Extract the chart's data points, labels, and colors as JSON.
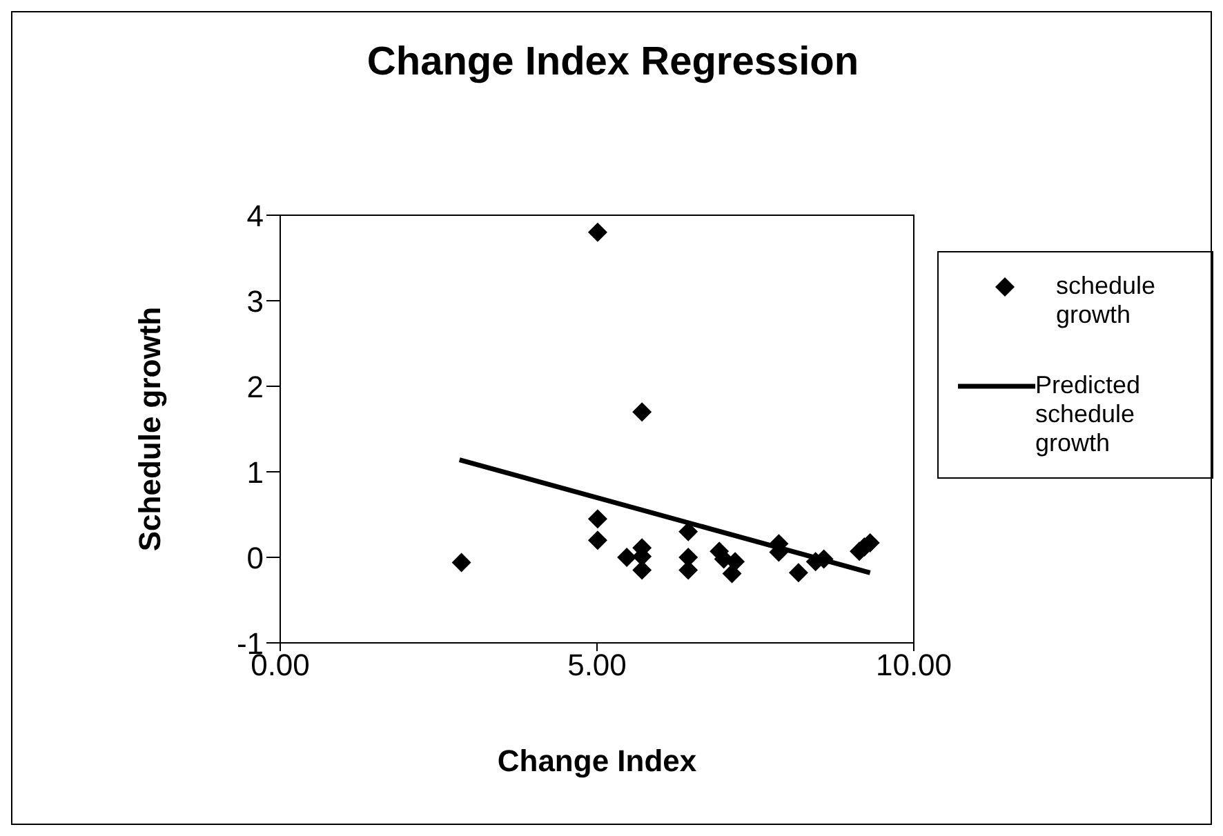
{
  "chart_data": {
    "type": "scatter",
    "title": "Change Index Regression",
    "xlabel": "Change Index",
    "ylabel": "Schedule growth",
    "xlim": [
      0,
      10
    ],
    "xticks": [
      {
        "value": 0,
        "label": "0.00"
      },
      {
        "value": 5,
        "label": "5.00"
      },
      {
        "value": 10,
        "label": "10.00"
      }
    ],
    "ylim": [
      -1,
      4
    ],
    "yticks": [
      -1,
      0,
      1,
      2,
      3,
      4
    ],
    "legend": "right",
    "series": [
      {
        "name": "schedule growth",
        "marker": "diamond",
        "color": "#000000",
        "x": [
          2.86,
          5.01,
          5.71,
          5.01,
          5.01,
          5.47,
          5.71,
          5.71,
          5.71,
          6.44,
          6.44,
          6.44,
          6.93,
          7.0,
          7.18,
          7.13,
          7.87,
          7.87,
          8.18,
          8.45,
          8.58,
          9.14,
          9.31,
          9.22
        ],
        "values": [
          -0.06,
          3.8,
          1.7,
          0.45,
          0.2,
          0.0,
          0.11,
          0.01,
          -0.15,
          0.3,
          0.0,
          -0.15,
          0.07,
          -0.02,
          -0.05,
          -0.19,
          0.16,
          0.06,
          -0.18,
          -0.05,
          -0.02,
          0.07,
          0.17,
          0.12
        ]
      },
      {
        "name": "Predicted schedule growth",
        "type": "line",
        "marker": "none",
        "color": "#000000",
        "x": [
          2.83,
          9.31
        ],
        "values": [
          1.14,
          -0.18
        ]
      }
    ]
  }
}
